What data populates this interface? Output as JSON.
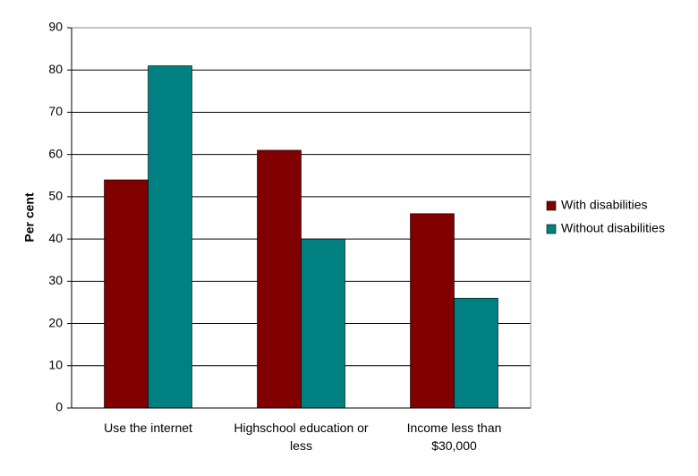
{
  "chart_data": {
    "type": "bar",
    "y_label": "Per cent",
    "categories": [
      "Use the internet",
      "Highschool education or less",
      "Income less than $30,000"
    ],
    "series": [
      {
        "name": "With disabilities",
        "color": "#800000",
        "values": [
          54,
          61,
          46
        ]
      },
      {
        "name": "Without disabilities",
        "color": "#008080",
        "values": [
          81,
          40,
          26
        ]
      }
    ],
    "ylim": [
      0,
      90
    ],
    "yticks": [
      0,
      10,
      20,
      30,
      40,
      50,
      60,
      70,
      80,
      90
    ],
    "grid": true,
    "legend": "right"
  }
}
